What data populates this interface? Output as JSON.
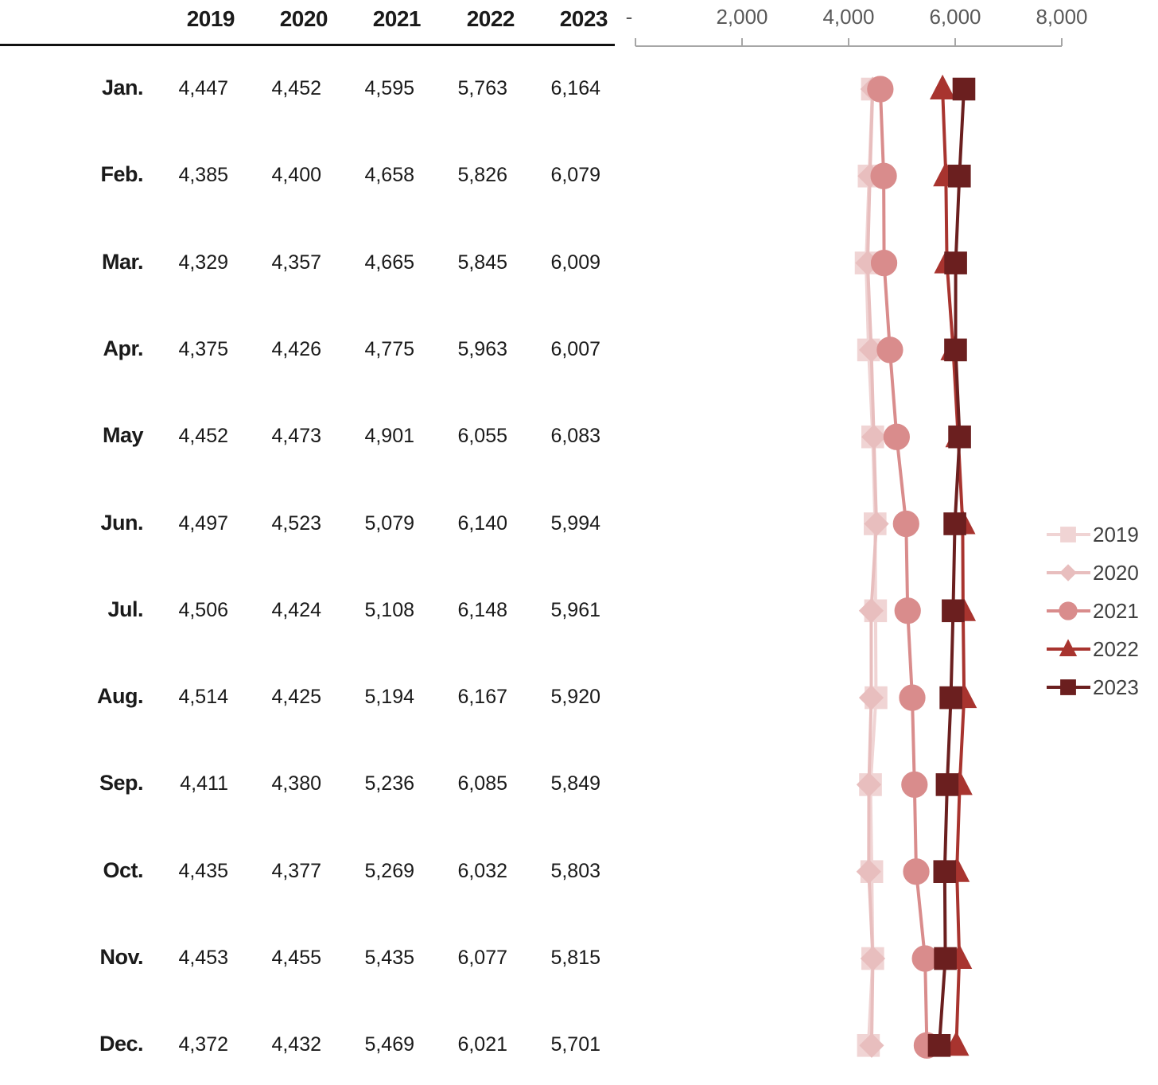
{
  "table": {
    "years": [
      "2019",
      "2020",
      "2021",
      "2022",
      "2023"
    ],
    "rows": [
      {
        "month": "Jan.",
        "values": [
          "4,447",
          "4,452",
          "4,595",
          "5,763",
          "6,164"
        ]
      },
      {
        "month": "Feb.",
        "values": [
          "4,385",
          "4,400",
          "4,658",
          "5,826",
          "6,079"
        ]
      },
      {
        "month": "Mar.",
        "values": [
          "4,329",
          "4,357",
          "4,665",
          "5,845",
          "6,009"
        ]
      },
      {
        "month": "Apr.",
        "values": [
          "4,375",
          "4,426",
          "4,775",
          "5,963",
          "6,007"
        ]
      },
      {
        "month": "May",
        "values": [
          "4,452",
          "4,473",
          "4,901",
          "6,055",
          "6,083"
        ]
      },
      {
        "month": "Jun.",
        "values": [
          "4,497",
          "4,523",
          "5,079",
          "6,140",
          "5,994"
        ]
      },
      {
        "month": "Jul.",
        "values": [
          "4,506",
          "4,424",
          "5,108",
          "6,148",
          "5,961"
        ]
      },
      {
        "month": "Aug.",
        "values": [
          "4,514",
          "4,425",
          "5,194",
          "6,167",
          "5,920"
        ]
      },
      {
        "month": "Sep.",
        "values": [
          "4,411",
          "4,380",
          "5,236",
          "6,085",
          "5,849"
        ]
      },
      {
        "month": "Oct.",
        "values": [
          "4,435",
          "4,377",
          "5,269",
          "6,032",
          "5,803"
        ]
      },
      {
        "month": "Nov.",
        "values": [
          "4,453",
          "4,455",
          "5,435",
          "6,077",
          "5,815"
        ]
      },
      {
        "month": "Dec.",
        "values": [
          "4,372",
          "4,432",
          "5,469",
          "6,021",
          "5,701"
        ]
      }
    ]
  },
  "chart_data": {
    "type": "line",
    "orientation": "horizontal-values",
    "categories": [
      "Jan.",
      "Feb.",
      "Mar.",
      "Apr.",
      "May",
      "Jun.",
      "Jul.",
      "Aug.",
      "Sep.",
      "Oct.",
      "Nov.",
      "Dec."
    ],
    "xlim": [
      0,
      8000
    ],
    "x_ticks": [
      0,
      2000,
      4000,
      6000,
      8000
    ],
    "x_tick_labels": [
      "-",
      "2,000",
      "4,000",
      "6,000",
      "8,000"
    ],
    "axis_position": "top",
    "grid": false,
    "legend_position": "right",
    "series": [
      {
        "name": "2019",
        "marker": "square-star",
        "color": "#F0D4D4",
        "values": [
          4447,
          4385,
          4329,
          4375,
          4452,
          4497,
          4506,
          4514,
          4411,
          4435,
          4453,
          4372
        ]
      },
      {
        "name": "2020",
        "marker": "diamond",
        "color": "#E8BEBE",
        "values": [
          4452,
          4400,
          4357,
          4426,
          4473,
          4523,
          4424,
          4425,
          4380,
          4377,
          4455,
          4432
        ]
      },
      {
        "name": "2021",
        "marker": "circle",
        "color": "#D98C8C",
        "values": [
          4595,
          4658,
          4665,
          4775,
          4901,
          5079,
          5108,
          5194,
          5236,
          5269,
          5435,
          5469
        ]
      },
      {
        "name": "2022",
        "marker": "triangle",
        "color": "#A8342F",
        "values": [
          5763,
          5826,
          5845,
          5963,
          6055,
          6140,
          6148,
          6167,
          6085,
          6032,
          6077,
          6021
        ]
      },
      {
        "name": "2023",
        "marker": "square",
        "color": "#6B1F1F",
        "values": [
          6164,
          6079,
          6009,
          6007,
          6083,
          5994,
          5961,
          5920,
          5849,
          5803,
          5815,
          5701
        ]
      }
    ]
  }
}
